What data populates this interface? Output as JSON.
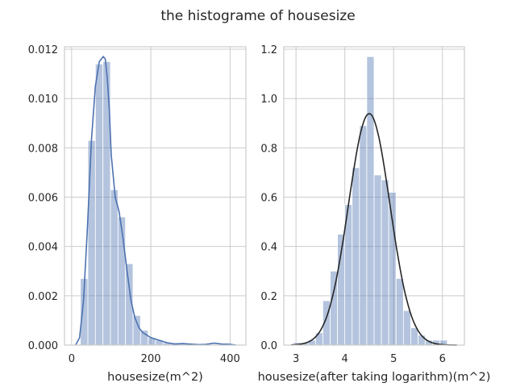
{
  "title": "the histograme of housesize",
  "colors": {
    "bar": "#4c72b0",
    "kde_left": "#4c72b0",
    "fit_right": "#262626",
    "grid": "#cccccc",
    "spine": "#cccccc",
    "text": "#262626"
  },
  "chart_data": [
    {
      "type": "bar",
      "xlabel": "housesize(m^2)",
      "ylabel": "",
      "grid": true,
      "xlim": [
        -18,
        440
      ],
      "ylim": [
        0,
        0.0121
      ],
      "xticks": [
        0,
        200,
        400
      ],
      "xtick_labels": [
        "0",
        "200",
        "400"
      ],
      "yticks": [
        0,
        0.002,
        0.004,
        0.006,
        0.008,
        0.01,
        0.012
      ],
      "ytick_labels": [
        "0.000",
        "0.002",
        "0.004",
        "0.006",
        "0.008",
        "0.010",
        "0.012"
      ],
      "bins": [
        {
          "x0": 22,
          "x1": 41,
          "value": 0.0027
        },
        {
          "x0": 41,
          "x1": 60,
          "value": 0.0083
        },
        {
          "x0": 60,
          "x1": 79,
          "value": 0.0114
        },
        {
          "x0": 79,
          "x1": 98,
          "value": 0.0115
        },
        {
          "x0": 98,
          "x1": 117,
          "value": 0.0063
        },
        {
          "x0": 117,
          "x1": 136,
          "value": 0.0052
        },
        {
          "x0": 136,
          "x1": 155,
          "value": 0.0033
        },
        {
          "x0": 155,
          "x1": 174,
          "value": 0.0012
        },
        {
          "x0": 174,
          "x1": 193,
          "value": 0.0006
        },
        {
          "x0": 193,
          "x1": 212,
          "value": 0.0003
        },
        {
          "x0": 212,
          "x1": 231,
          "value": 0.0002
        },
        {
          "x0": 231,
          "x1": 250,
          "value": 0.0001
        },
        {
          "x0": 250,
          "x1": 269,
          "value": 0.0001
        },
        {
          "x0": 269,
          "x1": 288,
          "value": 0.0001
        }
      ],
      "kde": {
        "x": [
          10,
          20,
          30,
          40,
          50,
          60,
          70,
          80,
          85,
          90,
          95,
          100,
          110,
          120,
          130,
          140,
          150,
          160,
          170,
          180,
          200,
          220,
          240,
          260,
          280,
          300,
          320,
          340,
          360,
          380,
          400,
          415
        ],
        "y": [
          0,
          0.0003,
          0.0018,
          0.0048,
          0.0083,
          0.0105,
          0.0115,
          0.0117,
          0.0116,
          0.0108,
          0.0096,
          0.0077,
          0.006,
          0.0054,
          0.0043,
          0.003,
          0.0018,
          0.0011,
          0.0007,
          0.0005,
          0.0003,
          0.0002,
          0.0001,
          4e-05,
          6e-05,
          4e-05,
          2e-05,
          3e-05,
          8e-05,
          4e-05,
          3e-05,
          0
        ]
      }
    },
    {
      "type": "bar",
      "xlabel": "housesize(after taking logarithm)(m^2)",
      "ylabel": "",
      "grid": true,
      "xlim": [
        2.75,
        6.45
      ],
      "ylim": [
        0,
        1.21
      ],
      "xticks": [
        3,
        4,
        5,
        6
      ],
      "xtick_labels": [
        "3",
        "4",
        "5",
        "6"
      ],
      "yticks": [
        0,
        0.2,
        0.4,
        0.6,
        0.8,
        1.0,
        1.2
      ],
      "ytick_labels": [
        "0.0",
        "0.2",
        "0.4",
        "0.6",
        "0.8",
        "1.0",
        "1.2"
      ],
      "bins": [
        {
          "x0": 2.95,
          "x1": 3.1,
          "value": 0.01
        },
        {
          "x0": 3.1,
          "x1": 3.25,
          "value": 0.01
        },
        {
          "x0": 3.25,
          "x1": 3.4,
          "value": 0.02
        },
        {
          "x0": 3.4,
          "x1": 3.55,
          "value": 0.05
        },
        {
          "x0": 3.55,
          "x1": 3.7,
          "value": 0.18
        },
        {
          "x0": 3.7,
          "x1": 3.85,
          "value": 0.3
        },
        {
          "x0": 3.85,
          "x1": 4.0,
          "value": 0.45
        },
        {
          "x0": 4.0,
          "x1": 4.15,
          "value": 0.57
        },
        {
          "x0": 4.15,
          "x1": 4.3,
          "value": 0.72
        },
        {
          "x0": 4.3,
          "x1": 4.45,
          "value": 0.89
        },
        {
          "x0": 4.45,
          "x1": 4.6,
          "value": 1.17
        },
        {
          "x0": 4.6,
          "x1": 4.75,
          "value": 0.69
        },
        {
          "x0": 4.75,
          "x1": 4.9,
          "value": 0.67
        },
        {
          "x0": 4.9,
          "x1": 5.05,
          "value": 0.62
        },
        {
          "x0": 5.05,
          "x1": 5.2,
          "value": 0.27
        },
        {
          "x0": 5.2,
          "x1": 5.35,
          "value": 0.14
        },
        {
          "x0": 5.35,
          "x1": 5.5,
          "value": 0.07
        },
        {
          "x0": 5.5,
          "x1": 5.65,
          "value": 0.04
        },
        {
          "x0": 5.65,
          "x1": 5.8,
          "value": 0.02
        },
        {
          "x0": 5.8,
          "x1": 5.95,
          "value": 0.02
        },
        {
          "x0": 5.95,
          "x1": 6.1,
          "value": 0.02
        }
      ],
      "fit": {
        "distribution": "normal",
        "mean": 4.5,
        "std": 0.425
      }
    }
  ]
}
